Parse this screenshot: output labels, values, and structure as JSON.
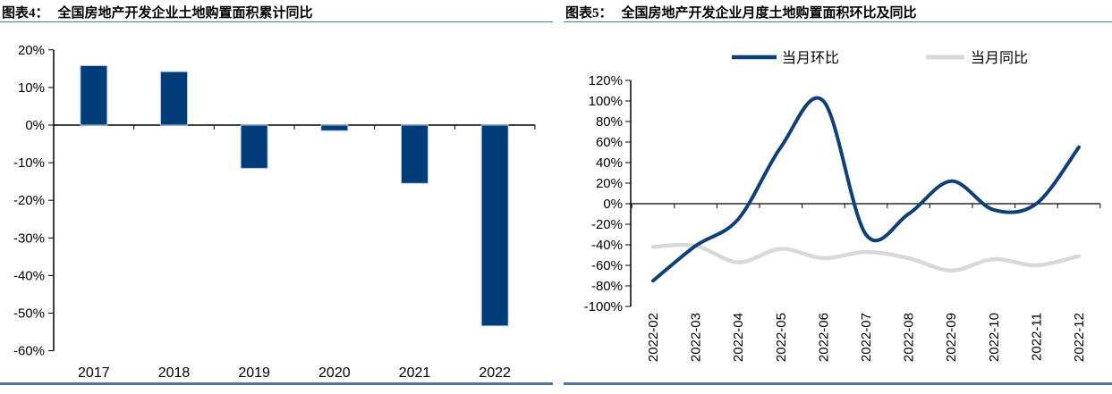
{
  "panels": [
    {
      "tag": "图表4：",
      "title": "全国房地产开发企业土地购置面积累计同比"
    },
    {
      "tag": "图表5：",
      "title": "全国房地产开发企业月度土地购置面积环比及同比"
    }
  ],
  "colors": {
    "navy": "#003c78",
    "light_gray": "#d9d9d9",
    "footer_rule": "#4f74a3",
    "title_underline": "#4a76ad",
    "axis": "#000000"
  },
  "chart_data": [
    {
      "type": "bar",
      "title": "全国房地产开发企业土地购置面积累计同比",
      "categories": [
        "2017",
        "2018",
        "2019",
        "2020",
        "2021",
        "2022"
      ],
      "values": [
        15.8,
        14.2,
        -11.5,
        -1.5,
        -15.5,
        -53.4
      ],
      "ylabel": "",
      "ylim": [
        -60,
        20
      ],
      "ytick_step": 10,
      "ytick_labels": [
        "20%",
        "10%",
        "0%",
        "-10%",
        "-20%",
        "-30%",
        "-40%",
        "-50%",
        "-60%"
      ],
      "grid": false,
      "bar_color": "#003c78"
    },
    {
      "type": "line",
      "title": "全国房地产开发企业月度土地购置面积环比及同比",
      "x": [
        "2022-02",
        "2022-03",
        "2022-04",
        "2022-05",
        "2022-06",
        "2022-07",
        "2022-08",
        "2022-09",
        "2022-10",
        "2022-11",
        "2022-12"
      ],
      "series": [
        {
          "name": "当月环比",
          "color": "#0f4078",
          "values": [
            -75,
            -41,
            -15,
            55,
            100,
            -30,
            -10,
            22,
            -6,
            0,
            55
          ]
        },
        {
          "name": "当月同比",
          "color": "#d9d9d9",
          "values": [
            -42,
            -41,
            -57,
            -44,
            -53,
            -47,
            -53,
            -65,
            -54,
            -60,
            -51
          ]
        }
      ],
      "ylim": [
        -100,
        120
      ],
      "ytick_step": 20,
      "ytick_labels": [
        "120%",
        "100%",
        "80%",
        "60%",
        "40%",
        "20%",
        "0%",
        "-20%",
        "-40%",
        "-60%",
        "-80%",
        "-100%"
      ],
      "legend_position": "top",
      "smoothed": true,
      "grid": false
    }
  ]
}
